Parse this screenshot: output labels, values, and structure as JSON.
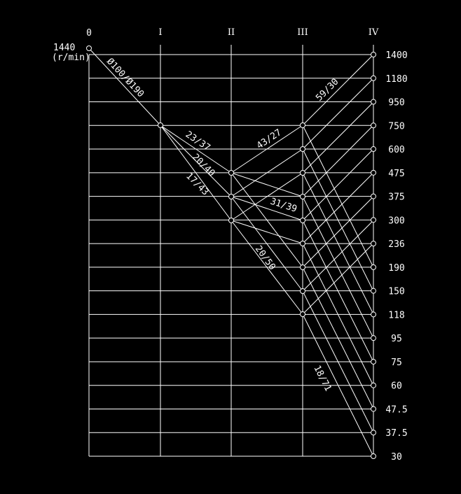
{
  "axes": [
    {
      "key": "0",
      "label": "0"
    },
    {
      "key": "I",
      "label": "I"
    },
    {
      "key": "II",
      "label": "II"
    },
    {
      "key": "III",
      "label": "III"
    },
    {
      "key": "IV",
      "label": "IV"
    }
  ],
  "input_speed": {
    "value": "1440",
    "unit": "(r/min)"
  },
  "speeds": [
    "1400",
    "1180",
    "950",
    "750",
    "600",
    "475",
    "375",
    "300",
    "236",
    "190",
    "150",
    "118",
    "95",
    "75",
    "60",
    "47.5",
    "37.5",
    "30"
  ],
  "ratio_labels": {
    "pulley": "Ø100/Ø190",
    "r1": "23/37",
    "r2": "20/40",
    "r3": "17/43",
    "r4": "43/27",
    "r5": "59/30",
    "r6": "31/39",
    "r7": "20/50",
    "r8": "18/71"
  },
  "colors": {
    "background": "#000000",
    "lines": "#ffffff",
    "text": "#ffffff"
  }
}
